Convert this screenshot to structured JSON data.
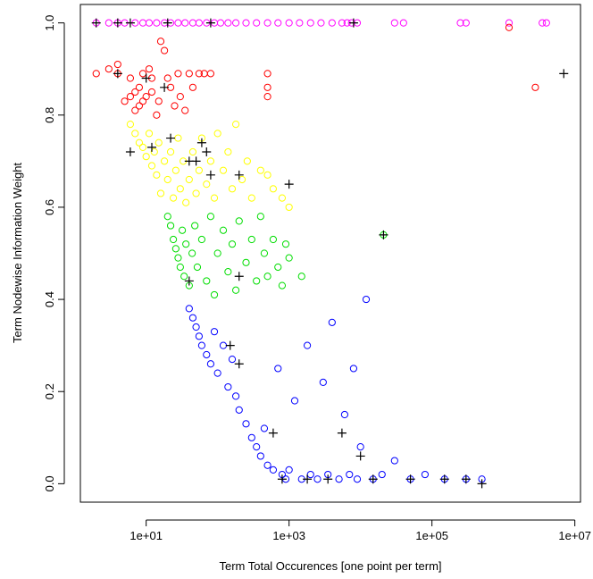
{
  "chart_data": {
    "type": "scatter",
    "title": "",
    "xlabel": "Term Total Occurences [one point per term]",
    "ylabel": "Term Nodewise Information Weight",
    "x_scale": "log10",
    "xlim": [
      1.2,
      12000000
    ],
    "ylim": [
      -0.04,
      1.04
    ],
    "x_ticks": [
      10,
      1000,
      100000,
      10000000
    ],
    "x_tick_labels": [
      "1e+01",
      "1e+03",
      "1e+05",
      "1e+07"
    ],
    "y_ticks": [
      0.0,
      0.2,
      0.4,
      0.6,
      0.8,
      1.0
    ],
    "y_tick_labels": [
      "0.0",
      "0.2",
      "0.4",
      "0.6",
      "0.8",
      "1.0"
    ],
    "grid": false,
    "legend": "none",
    "colors": {
      "magenta": "#ff00ff",
      "red": "#ff0000",
      "yellow": "#ffff00",
      "green": "#00dd00",
      "blue": "#0000ff",
      "marker": "#000000"
    },
    "series": [
      {
        "color": "#ff00ff",
        "marker": "circle",
        "points": [
          [
            2,
            1.0
          ],
          [
            3,
            1.0
          ],
          [
            4,
            1.0
          ],
          [
            5,
            1.0
          ],
          [
            7,
            1.0
          ],
          [
            9,
            1.0
          ],
          [
            11,
            1.0
          ],
          [
            14,
            1.0
          ],
          [
            18,
            1.0
          ],
          [
            22,
            1.0
          ],
          [
            28,
            1.0
          ],
          [
            35,
            1.0
          ],
          [
            45,
            1.0
          ],
          [
            55,
            1.0
          ],
          [
            70,
            1.0
          ],
          [
            90,
            1.0
          ],
          [
            110,
            1.0
          ],
          [
            140,
            1.0
          ],
          [
            180,
            1.0
          ],
          [
            250,
            1.0
          ],
          [
            350,
            1.0
          ],
          [
            500,
            1.0
          ],
          [
            700,
            1.0
          ],
          [
            1000,
            1.0
          ],
          [
            1400,
            1.0
          ],
          [
            2000,
            1.0
          ],
          [
            2800,
            1.0
          ],
          [
            4000,
            1.0
          ],
          [
            5500,
            1.0
          ],
          [
            6500,
            1.0
          ],
          [
            7500,
            1.0
          ],
          [
            9000,
            1.0
          ],
          [
            30000,
            1.0
          ],
          [
            40000,
            1.0
          ],
          [
            250000,
            1.0
          ],
          [
            300000,
            1.0
          ],
          [
            1200000,
            1.0
          ],
          [
            3500000,
            1.0
          ],
          [
            4000000,
            1.0
          ]
        ]
      },
      {
        "color": "#ff0000",
        "marker": "circle",
        "points": [
          [
            2,
            0.89
          ],
          [
            3,
            0.9
          ],
          [
            4,
            0.89
          ],
          [
            4,
            0.91
          ],
          [
            5,
            0.83
          ],
          [
            6,
            0.88
          ],
          [
            6,
            0.84
          ],
          [
            7,
            0.85
          ],
          [
            7,
            0.81
          ],
          [
            8,
            0.82
          ],
          [
            8,
            0.86
          ],
          [
            9,
            0.89
          ],
          [
            9,
            0.83
          ],
          [
            10,
            0.84
          ],
          [
            11,
            0.9
          ],
          [
            12,
            0.88
          ],
          [
            12,
            0.85
          ],
          [
            14,
            0.8
          ],
          [
            15,
            0.83
          ],
          [
            16,
            0.96
          ],
          [
            18,
            0.94
          ],
          [
            20,
            0.88
          ],
          [
            22,
            0.86
          ],
          [
            25,
            0.82
          ],
          [
            28,
            0.89
          ],
          [
            30,
            0.84
          ],
          [
            35,
            0.81
          ],
          [
            40,
            0.89
          ],
          [
            45,
            0.86
          ],
          [
            55,
            0.89
          ],
          [
            65,
            0.89
          ],
          [
            80,
            0.89
          ],
          [
            500,
            0.89
          ],
          [
            500,
            0.86
          ],
          [
            500,
            0.84
          ],
          [
            1200000,
            0.99
          ],
          [
            2800000,
            0.86
          ]
        ]
      },
      {
        "color": "#ffff00",
        "marker": "circle",
        "points": [
          [
            6,
            0.78
          ],
          [
            7,
            0.76
          ],
          [
            8,
            0.74
          ],
          [
            9,
            0.73
          ],
          [
            10,
            0.71
          ],
          [
            11,
            0.76
          ],
          [
            12,
            0.69
          ],
          [
            13,
            0.72
          ],
          [
            14,
            0.67
          ],
          [
            15,
            0.74
          ],
          [
            16,
            0.63
          ],
          [
            18,
            0.7
          ],
          [
            20,
            0.66
          ],
          [
            22,
            0.72
          ],
          [
            24,
            0.62
          ],
          [
            26,
            0.68
          ],
          [
            28,
            0.75
          ],
          [
            30,
            0.64
          ],
          [
            33,
            0.7
          ],
          [
            36,
            0.61
          ],
          [
            40,
            0.66
          ],
          [
            45,
            0.72
          ],
          [
            50,
            0.63
          ],
          [
            55,
            0.68
          ],
          [
            60,
            0.75
          ],
          [
            70,
            0.65
          ],
          [
            80,
            0.7
          ],
          [
            90,
            0.62
          ],
          [
            100,
            0.76
          ],
          [
            120,
            0.68
          ],
          [
            140,
            0.72
          ],
          [
            160,
            0.64
          ],
          [
            180,
            0.78
          ],
          [
            220,
            0.66
          ],
          [
            260,
            0.7
          ],
          [
            300,
            0.62
          ],
          [
            400,
            0.68
          ],
          [
            500,
            0.67
          ],
          [
            600,
            0.64
          ],
          [
            800,
            0.62
          ],
          [
            1000,
            0.6
          ]
        ]
      },
      {
        "color": "#00dd00",
        "marker": "circle",
        "points": [
          [
            20,
            0.58
          ],
          [
            22,
            0.56
          ],
          [
            24,
            0.53
          ],
          [
            26,
            0.51
          ],
          [
            28,
            0.49
          ],
          [
            30,
            0.47
          ],
          [
            32,
            0.55
          ],
          [
            34,
            0.45
          ],
          [
            36,
            0.52
          ],
          [
            40,
            0.43
          ],
          [
            44,
            0.5
          ],
          [
            48,
            0.56
          ],
          [
            52,
            0.47
          ],
          [
            60,
            0.53
          ],
          [
            70,
            0.44
          ],
          [
            80,
            0.58
          ],
          [
            90,
            0.41
          ],
          [
            100,
            0.5
          ],
          [
            120,
            0.55
          ],
          [
            140,
            0.46
          ],
          [
            160,
            0.52
          ],
          [
            180,
            0.42
          ],
          [
            200,
            0.57
          ],
          [
            250,
            0.48
          ],
          [
            300,
            0.53
          ],
          [
            350,
            0.44
          ],
          [
            400,
            0.58
          ],
          [
            450,
            0.5
          ],
          [
            500,
            0.45
          ],
          [
            600,
            0.53
          ],
          [
            700,
            0.47
          ],
          [
            800,
            0.43
          ],
          [
            900,
            0.52
          ],
          [
            1000,
            0.49
          ],
          [
            1500,
            0.45
          ],
          [
            21000,
            0.54
          ]
        ]
      },
      {
        "color": "#0000ff",
        "marker": "circle",
        "points": [
          [
            40,
            0.38
          ],
          [
            45,
            0.36
          ],
          [
            50,
            0.34
          ],
          [
            55,
            0.32
          ],
          [
            60,
            0.3
          ],
          [
            70,
            0.28
          ],
          [
            80,
            0.26
          ],
          [
            90,
            0.33
          ],
          [
            100,
            0.24
          ],
          [
            120,
            0.3
          ],
          [
            140,
            0.21
          ],
          [
            160,
            0.27
          ],
          [
            180,
            0.19
          ],
          [
            200,
            0.16
          ],
          [
            250,
            0.13
          ],
          [
            300,
            0.1
          ],
          [
            350,
            0.08
          ],
          [
            400,
            0.06
          ],
          [
            450,
            0.12
          ],
          [
            500,
            0.04
          ],
          [
            600,
            0.03
          ],
          [
            700,
            0.25
          ],
          [
            800,
            0.02
          ],
          [
            900,
            0.01
          ],
          [
            1000,
            0.03
          ],
          [
            1200,
            0.18
          ],
          [
            1500,
            0.01
          ],
          [
            1800,
            0.3
          ],
          [
            2000,
            0.02
          ],
          [
            2500,
            0.01
          ],
          [
            3000,
            0.22
          ],
          [
            3500,
            0.02
          ],
          [
            4000,
            0.35
          ],
          [
            5000,
            0.01
          ],
          [
            6000,
            0.15
          ],
          [
            7000,
            0.02
          ],
          [
            8000,
            0.25
          ],
          [
            9000,
            0.01
          ],
          [
            10000,
            0.08
          ],
          [
            12000,
            0.4
          ],
          [
            15000,
            0.01
          ],
          [
            20000,
            0.02
          ],
          [
            30000,
            0.05
          ],
          [
            50000,
            0.01
          ],
          [
            80000,
            0.02
          ],
          [
            150000,
            0.01
          ],
          [
            300000,
            0.01
          ],
          [
            500000,
            0.01
          ]
        ]
      }
    ],
    "highlighted_points": {
      "color": "#000000",
      "marker": "plus",
      "points": [
        [
          2,
          1.0
        ],
        [
          4,
          1.0
        ],
        [
          6,
          1.0
        ],
        [
          20,
          1.0
        ],
        [
          80,
          1.0
        ],
        [
          8000,
          1.0
        ],
        [
          4,
          0.89
        ],
        [
          10,
          0.88
        ],
        [
          18,
          0.86
        ],
        [
          6,
          0.72
        ],
        [
          12,
          0.73
        ],
        [
          22,
          0.75
        ],
        [
          40,
          0.7
        ],
        [
          50,
          0.7
        ],
        [
          60,
          0.74
        ],
        [
          70,
          0.72
        ],
        [
          80,
          0.67
        ],
        [
          200,
          0.67
        ],
        [
          1000,
          0.65
        ],
        [
          40,
          0.44
        ],
        [
          200,
          0.45
        ],
        [
          21000,
          0.54
        ],
        [
          150,
          0.3
        ],
        [
          200,
          0.26
        ],
        [
          600,
          0.11
        ],
        [
          5500,
          0.11
        ],
        [
          10000,
          0.06
        ],
        [
          800,
          0.01
        ],
        [
          1800,
          0.01
        ],
        [
          3500,
          0.01
        ],
        [
          15000,
          0.01
        ],
        [
          50000,
          0.01
        ],
        [
          150000,
          0.01
        ],
        [
          300000,
          0.01
        ],
        [
          500000,
          0.0
        ],
        [
          7000000,
          0.89
        ]
      ]
    }
  }
}
